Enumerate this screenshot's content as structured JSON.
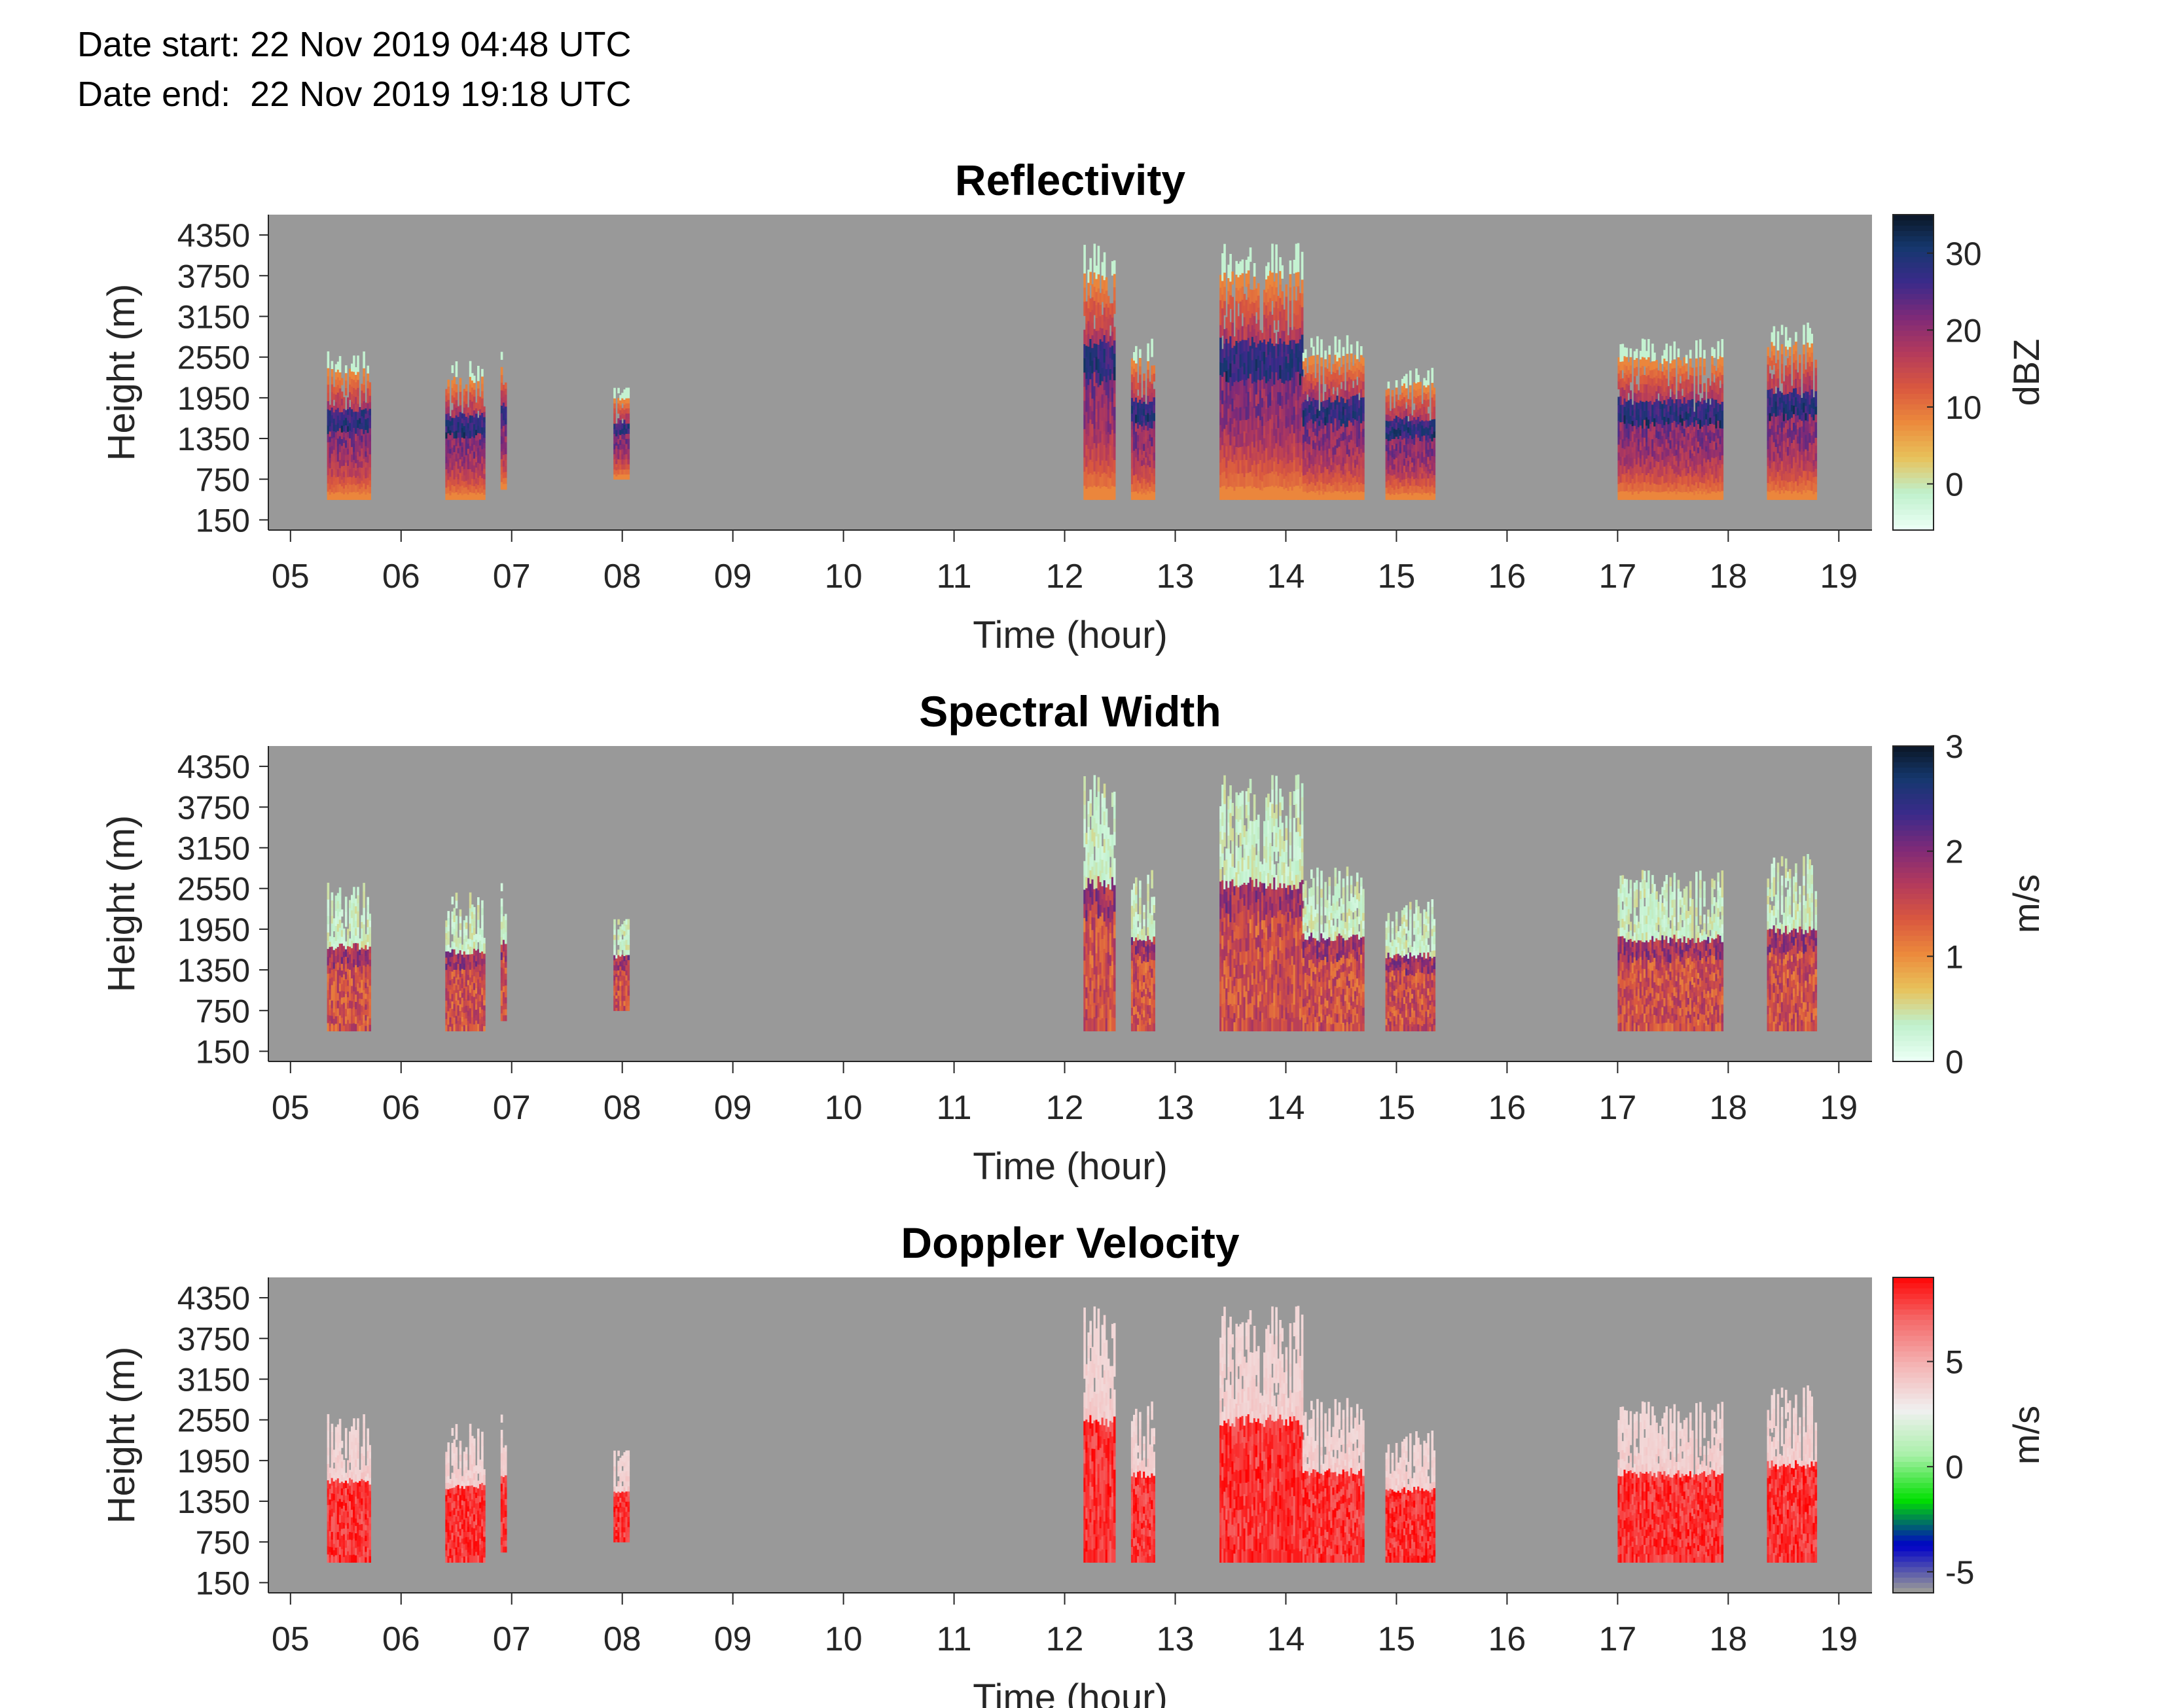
{
  "header": {
    "date_start": "Date start: 22 Nov 2019 04:48 UTC",
    "date_end": "Date end:  22 Nov 2019 19:18 UTC"
  },
  "chart_data": [
    {
      "type": "heatmap",
      "title": "Reflectivity",
      "xlabel": "Time (hour)",
      "ylabel": "Height (m)",
      "x_ticks": [
        "05",
        "06",
        "07",
        "08",
        "09",
        "10",
        "11",
        "12",
        "13",
        "14",
        "15",
        "16",
        "17",
        "18",
        "19"
      ],
      "y_ticks": [
        "4350",
        "3750",
        "3150",
        "2550",
        "1950",
        "1350",
        "750",
        "150"
      ],
      "xlim": [
        4.8,
        19.3
      ],
      "ylim": [
        0,
        4650
      ],
      "background_color": "#999999",
      "colorbar": {
        "label": "dBZ",
        "ticks": [
          "30",
          "20",
          "10",
          "0"
        ],
        "range": [
          -6,
          35
        ],
        "colormap": "magma_r"
      },
      "cloud_segments": [
        {
          "start": 5.33,
          "end": 5.72,
          "base": 450,
          "top": 2750
        },
        {
          "start": 6.4,
          "end": 6.75,
          "base": 450,
          "top": 2600
        },
        {
          "start": 6.9,
          "end": 6.95,
          "base": 600,
          "top": 2750
        },
        {
          "start": 7.92,
          "end": 8.05,
          "base": 750,
          "top": 2200
        },
        {
          "start": 12.17,
          "end": 12.45,
          "base": 450,
          "top": 4450
        },
        {
          "start": 12.6,
          "end": 12.8,
          "base": 450,
          "top": 2950
        },
        {
          "start": 13.4,
          "end": 14.15,
          "base": 450,
          "top": 4450
        },
        {
          "start": 14.15,
          "end": 14.7,
          "base": 450,
          "top": 3000
        },
        {
          "start": 14.9,
          "end": 15.35,
          "base": 450,
          "top": 2500
        },
        {
          "start": 17.0,
          "end": 17.95,
          "base": 450,
          "top": 2950
        },
        {
          "start": 18.35,
          "end": 18.8,
          "base": 450,
          "top": 3200
        }
      ]
    },
    {
      "type": "heatmap",
      "title": "Spectral Width",
      "xlabel": "Time (hour)",
      "ylabel": "Height (m)",
      "x_ticks": [
        "05",
        "06",
        "07",
        "08",
        "09",
        "10",
        "11",
        "12",
        "13",
        "14",
        "15",
        "16",
        "17",
        "18",
        "19"
      ],
      "y_ticks": [
        "4350",
        "3750",
        "3150",
        "2550",
        "1950",
        "1350",
        "750",
        "150"
      ],
      "xlim": [
        4.8,
        19.3
      ],
      "ylim": [
        0,
        4650
      ],
      "background_color": "#999999",
      "colorbar": {
        "label": "m/s",
        "ticks": [
          "3",
          "2",
          "1",
          "0"
        ],
        "range": [
          0,
          3
        ],
        "colormap": "magma_r"
      }
    },
    {
      "type": "heatmap",
      "title": "Doppler Velocity",
      "xlabel": "Time (hour)",
      "ylabel": "Height (m)",
      "x_ticks": [
        "05",
        "06",
        "07",
        "08",
        "09",
        "10",
        "11",
        "12",
        "13",
        "14",
        "15",
        "16",
        "17",
        "18",
        "19"
      ],
      "y_ticks": [
        "4350",
        "3750",
        "3150",
        "2550",
        "1950",
        "1350",
        "750",
        "150"
      ],
      "xlim": [
        4.8,
        19.3
      ],
      "ylim": [
        0,
        4650
      ],
      "background_color": "#999999",
      "colorbar": {
        "label": "m/s",
        "ticks": [
          "5",
          "0",
          "-5"
        ],
        "range": [
          -6,
          9
        ],
        "colormap": "green-white-red"
      }
    }
  ]
}
